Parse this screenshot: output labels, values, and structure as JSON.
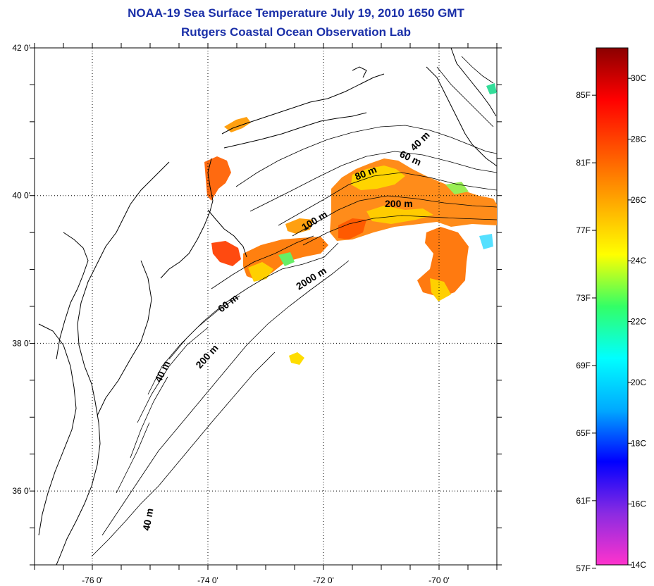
{
  "title_line1": "NOAA-19 Sea Surface Temperature July 19, 2010 1650 GMT",
  "title_line2": "Rutgers Coastal Ocean Observation Lab",
  "map": {
    "lat_ticks": [
      {
        "value": 42,
        "label": "42 0'"
      },
      {
        "value": 40,
        "label": "40 0'"
      },
      {
        "value": 38,
        "label": "38 0'"
      },
      {
        "value": 36,
        "label": "36 0'"
      }
    ],
    "lon_ticks": [
      {
        "value": -76,
        "label": "-76 0'"
      },
      {
        "value": -74,
        "label": "-74 0'"
      },
      {
        "value": -72,
        "label": "-72 0'"
      },
      {
        "value": -70,
        "label": "-70 0'"
      }
    ],
    "depth_labels": [
      "40 m",
      "60 m",
      "80 m",
      "100 m",
      "200 m",
      "2000 m",
      "60 m",
      "40 m",
      "200 m",
      "40 m"
    ],
    "colors": {
      "coastline": "#000000",
      "graticule": "#000000",
      "title": "#1a2fa8"
    }
  },
  "colorbar": {
    "fahrenheit_labels": [
      "85F",
      "81F",
      "77F",
      "73F",
      "69F",
      "65F",
      "61F",
      "57F"
    ],
    "celsius_labels": [
      "30C",
      "28C",
      "26C",
      "24C",
      "22C",
      "20C",
      "18C",
      "16C",
      "14C"
    ],
    "range_c": [
      14,
      31
    ],
    "gradient": [
      "#ff33cc",
      "#8a2be2",
      "#0000ff",
      "#00aaff",
      "#00ffff",
      "#33ff66",
      "#ffff00",
      "#ffaa00",
      "#ff5500",
      "#ff0000",
      "#8b0000"
    ]
  }
}
